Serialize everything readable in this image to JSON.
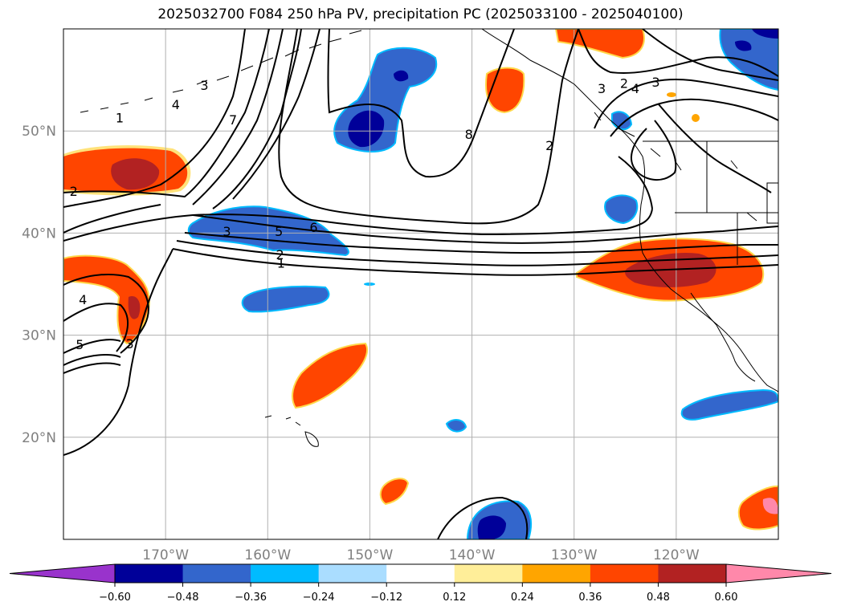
{
  "chart_data": {
    "type": "heatmap",
    "title": "2025032700 F084 250 hPa PV, precipitation PC (2025033100 - 2025040100)",
    "xlabel": "",
    "ylabel": "",
    "map_extent": {
      "lon": [
        -180,
        -110
      ],
      "lat": [
        10,
        60
      ]
    },
    "lon_ticks": [
      {
        "value": -170,
        "label": "170°W"
      },
      {
        "value": -160,
        "label": "160°W"
      },
      {
        "value": -150,
        "label": "150°W"
      },
      {
        "value": -140,
        "label": "140°W"
      },
      {
        "value": -130,
        "label": "130°W"
      },
      {
        "value": -120,
        "label": "120°W"
      }
    ],
    "lat_ticks": [
      {
        "value": 20,
        "label": "20°N"
      },
      {
        "value": 30,
        "label": "30°N"
      },
      {
        "value": 40,
        "label": "40°N"
      },
      {
        "value": 50,
        "label": "50°N"
      }
    ],
    "grid": true,
    "colorbar": {
      "orientation": "horizontal",
      "extend": "both",
      "ticks": [
        "−0.60",
        "−0.48",
        "−0.36",
        "−0.24",
        "−0.12",
        "0.12",
        "0.24",
        "0.36",
        "0.48",
        "0.60"
      ],
      "colors": [
        "#9933cc",
        "#000099",
        "#3366cc",
        "#00bbff",
        "#aaddff",
        "#ffffff",
        "#ffee99",
        "#ffa500",
        "#ff4500",
        "#b22222",
        "#ff88aa"
      ]
    },
    "pv_contour_labels": [
      {
        "text": "1",
        "lon": -174.5,
        "lat": 51.3
      },
      {
        "text": "3",
        "lon": -166.2,
        "lat": 54.5
      },
      {
        "text": "4",
        "lon": -169.0,
        "lat": 52.6
      },
      {
        "text": "7",
        "lon": -163.4,
        "lat": 51.1
      },
      {
        "text": "8",
        "lon": -140.3,
        "lat": 49.7
      },
      {
        "text": "3",
        "lon": -127.3,
        "lat": 54.2
      },
      {
        "text": "2",
        "lon": -125.1,
        "lat": 54.7
      },
      {
        "text": "4",
        "lon": -124.0,
        "lat": 54.2
      },
      {
        "text": "2",
        "lon": -132.4,
        "lat": 48.6
      },
      {
        "text": "3",
        "lon": -122.0,
        "lat": 54.8
      },
      {
        "text": "2",
        "lon": -179.0,
        "lat": 44.1
      },
      {
        "text": "3",
        "lon": -164.0,
        "lat": 40.2
      },
      {
        "text": "5",
        "lon": -158.9,
        "lat": 40.2
      },
      {
        "text": "6",
        "lon": -155.5,
        "lat": 40.6
      },
      {
        "text": "2",
        "lon": -158.8,
        "lat": 37.9
      },
      {
        "text": "1",
        "lon": -158.7,
        "lat": 37.1
      },
      {
        "text": "4",
        "lon": -178.1,
        "lat": 33.5
      },
      {
        "text": "5",
        "lon": -178.4,
        "lat": 29.1
      },
      {
        "text": "3",
        "lon": -173.5,
        "lat": 29.2
      }
    ],
    "precip_regions": [
      {
        "level": "0.36",
        "color": "#ff4500",
        "center": {
          "lon": -174,
          "lat": 44.5
        }
      },
      {
        "level": "0.48",
        "color": "#b22222",
        "center": {
          "lon": -174,
          "lat": 44.5
        }
      },
      {
        "level": "0.36",
        "color": "#ff4500",
        "center": {
          "lon": -175,
          "lat": 34
        }
      },
      {
        "level": "-0.36",
        "color": "#3366cc",
        "center": {
          "lon": -149,
          "lat": 52
        }
      },
      {
        "level": "-0.48",
        "color": "#000099",
        "center": {
          "lon": -149,
          "lat": 50
        }
      },
      {
        "level": "0.36",
        "color": "#ff4500",
        "center": {
          "lon": -137,
          "lat": 54
        }
      },
      {
        "level": "0.36",
        "color": "#ff4500",
        "center": {
          "lon": -125,
          "lat": 59
        }
      },
      {
        "level": "-0.36",
        "color": "#3366cc",
        "center": {
          "lon": -114,
          "lat": 58
        }
      },
      {
        "level": "-0.36",
        "color": "#3366cc",
        "center": {
          "lon": -160,
          "lat": 40
        }
      },
      {
        "level": "-0.36",
        "color": "#3366cc",
        "center": {
          "lon": -156,
          "lat": 33
        }
      },
      {
        "level": "0.36",
        "color": "#ff4500",
        "center": {
          "lon": -150,
          "lat": 26
        }
      },
      {
        "level": "0.36",
        "color": "#ff4500",
        "center": {
          "lon": -121,
          "lat": 36
        }
      },
      {
        "level": "0.48",
        "color": "#b22222",
        "center": {
          "lon": -121,
          "lat": 36
        }
      },
      {
        "level": "-0.36",
        "color": "#3366cc",
        "center": {
          "lon": -125,
          "lat": 42
        }
      },
      {
        "level": "-0.36",
        "color": "#3366cc",
        "center": {
          "lon": -116,
          "lat": 23
        }
      },
      {
        "level": "-0.36",
        "color": "#3366cc",
        "center": {
          "lon": -137,
          "lat": 12
        }
      },
      {
        "level": "0.36",
        "color": "#ff4500",
        "center": {
          "lon": -112,
          "lat": 13
        }
      },
      {
        "level": "0.36",
        "color": "#ff4500",
        "center": {
          "lon": -147,
          "lat": 15
        }
      },
      {
        "level": "-0.36",
        "color": "#3366cc",
        "center": {
          "lon": -141,
          "lat": 21.2
        }
      }
    ]
  }
}
